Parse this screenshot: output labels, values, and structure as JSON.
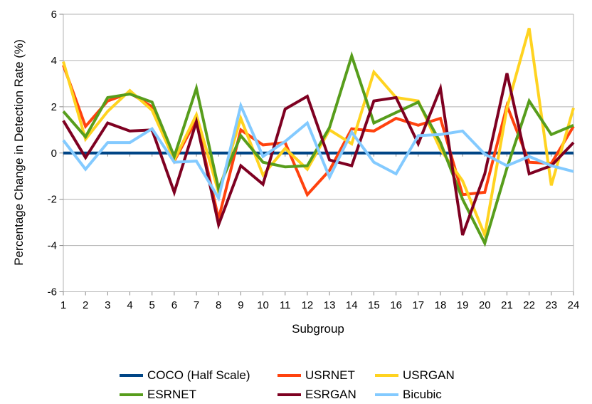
{
  "chart_data": {
    "type": "line",
    "title": "",
    "xlabel": "Subgroup",
    "ylabel": "Percentage Change in Detection Rate (%)",
    "x_categories": [
      "1",
      "2",
      "3",
      "4",
      "5",
      "6",
      "7",
      "8",
      "9",
      "10",
      "11",
      "12",
      "13",
      "14",
      "15",
      "16",
      "17",
      "18",
      "19",
      "20",
      "21",
      "22",
      "23",
      "24"
    ],
    "y_ticks": [
      "6",
      "4",
      "2",
      "0",
      "-2",
      "-4",
      "-6"
    ],
    "ylim": [
      -6,
      6
    ],
    "grid": "horizontal-major",
    "grid_color": "#b3b3b3",
    "tick_color": "#888888",
    "legend_position": "bottom",
    "series": [
      {
        "name": "COCO (Half Scale)",
        "color": "#004586",
        "values": [
          0,
          0,
          0,
          0,
          0,
          0,
          0,
          0,
          0,
          0,
          0,
          0,
          0,
          0,
          0,
          0,
          0,
          0,
          0,
          0,
          0,
          0,
          0,
          0
        ]
      },
      {
        "name": "USRNET",
        "color": "#ff420e",
        "values": [
          3.8,
          1.15,
          2.25,
          2.6,
          2.0,
          -0.35,
          1.45,
          -2.85,
          1.0,
          0.35,
          0.45,
          -1.8,
          -0.75,
          1.05,
          0.95,
          1.5,
          1.2,
          1.5,
          -1.8,
          -1.7,
          2.05,
          -0.4,
          -0.45,
          1.15
        ]
      },
      {
        "name": "USRGAN",
        "color": "#ffd320",
        "values": [
          3.95,
          0.6,
          1.8,
          2.7,
          1.85,
          -0.3,
          1.65,
          -1.7,
          1.5,
          -0.95,
          0.2,
          -0.7,
          1.0,
          0.4,
          3.5,
          2.4,
          2.25,
          0.15,
          -1.2,
          -3.55,
          1.95,
          5.4,
          -1.4,
          1.95
        ]
      },
      {
        "name": "ESRNET",
        "color": "#579d1c",
        "values": [
          1.8,
          0.7,
          2.4,
          2.55,
          2.2,
          -0.15,
          2.8,
          -1.55,
          0.75,
          -0.4,
          -0.6,
          -0.55,
          1.1,
          4.2,
          1.3,
          1.75,
          2.2,
          0.45,
          -2.0,
          -3.9,
          -0.65,
          2.25,
          0.8,
          1.2
        ]
      },
      {
        "name": "ESRGAN",
        "color": "#7e0021",
        "values": [
          1.4,
          -0.2,
          1.3,
          0.95,
          1.0,
          -1.7,
          1.35,
          -3.1,
          -0.55,
          -1.35,
          1.9,
          2.45,
          -0.3,
          -0.55,
          2.25,
          2.4,
          0.4,
          2.8,
          -3.55,
          -0.9,
          3.45,
          -0.9,
          -0.55,
          0.45
        ]
      },
      {
        "name": "Bicubic",
        "color": "#83caff",
        "values": [
          0.55,
          -0.7,
          0.45,
          0.45,
          1.05,
          -0.4,
          -0.35,
          -1.95,
          2.05,
          -0.15,
          0.5,
          1.3,
          -1.05,
          0.9,
          -0.4,
          -0.9,
          0.75,
          0.8,
          0.95,
          -0.05,
          -0.55,
          -0.15,
          -0.55,
          -0.8
        ]
      }
    ]
  }
}
